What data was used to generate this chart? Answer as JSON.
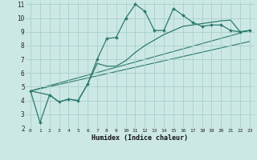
{
  "xlabel": "Humidex (Indice chaleur)",
  "background_color": "#cce8e5",
  "grid_color": "#aacfcc",
  "line_color": "#2d7a6e",
  "xlim": [
    -0.5,
    23.5
  ],
  "ylim": [
    2,
    11.2
  ],
  "xticks": [
    0,
    1,
    2,
    3,
    4,
    5,
    6,
    7,
    8,
    9,
    10,
    11,
    12,
    13,
    14,
    15,
    16,
    17,
    18,
    19,
    20,
    21,
    22,
    23
  ],
  "yticks": [
    2,
    3,
    4,
    5,
    6,
    7,
    8,
    9,
    10,
    11
  ],
  "series1_x": [
    0,
    1,
    2,
    3,
    4,
    5,
    6,
    7,
    8,
    9,
    10,
    11,
    12,
    13,
    14,
    15,
    16,
    17,
    18,
    19,
    20,
    21,
    22,
    23
  ],
  "series1_y": [
    4.7,
    2.4,
    4.4,
    3.9,
    4.1,
    4.0,
    5.2,
    7.0,
    8.5,
    8.6,
    10.0,
    11.0,
    10.5,
    9.1,
    9.1,
    10.7,
    10.2,
    9.7,
    9.4,
    9.5,
    9.5,
    9.1,
    9.0,
    9.1
  ],
  "series2_x": [
    0,
    2,
    3,
    4,
    5,
    6,
    7,
    8,
    9,
    10,
    11,
    12,
    13,
    14,
    15,
    16,
    17,
    18,
    19,
    20,
    21,
    22,
    23
  ],
  "series2_y": [
    4.7,
    4.4,
    3.9,
    4.1,
    4.0,
    5.2,
    6.7,
    6.5,
    6.5,
    6.9,
    7.5,
    8.0,
    8.4,
    8.8,
    9.1,
    9.4,
    9.5,
    9.6,
    9.7,
    9.8,
    9.85,
    9.0,
    9.1
  ],
  "series3_x": [
    0,
    23
  ],
  "series3_y": [
    4.7,
    9.1
  ],
  "series4_x": [
    0,
    23
  ],
  "series4_y": [
    4.7,
    8.3
  ]
}
